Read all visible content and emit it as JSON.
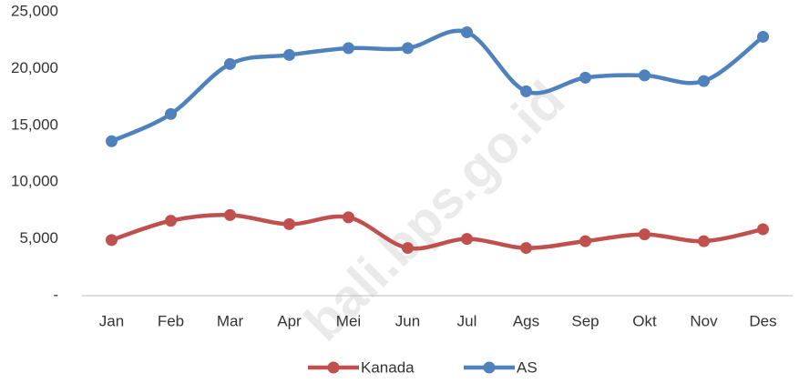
{
  "chart_data": {
    "type": "line",
    "categories": [
      "Jan",
      "Feb",
      "Mar",
      "Apr",
      "Mei",
      "Jun",
      "Jul",
      "Ags",
      "Sep",
      "Okt",
      "Nov",
      "Des"
    ],
    "series": [
      {
        "name": "Kanada",
        "color": "#c0504d",
        "values": [
          4900,
          6600,
          7100,
          6300,
          6900,
          4200,
          5000,
          4200,
          4800,
          5400,
          4800,
          5850
        ]
      },
      {
        "name": "AS",
        "color": "#4f81bd",
        "values": [
          13600,
          16000,
          20400,
          21200,
          21800,
          21800,
          23200,
          18000,
          19200,
          19400,
          18900,
          22800
        ]
      }
    ],
    "ylim": [
      0,
      25000
    ],
    "yticks": [
      {
        "value": 0,
        "label": "-"
      },
      {
        "value": 5000,
        "label": "5,000"
      },
      {
        "value": 10000,
        "label": "10,000"
      },
      {
        "value": 15000,
        "label": "15,000"
      },
      {
        "value": 20000,
        "label": "20,000"
      },
      {
        "value": 25000,
        "label": "25,000"
      }
    ],
    "grid": false,
    "smooth": true,
    "legend": "bottom",
    "watermark": "bali.bps.go.id"
  }
}
